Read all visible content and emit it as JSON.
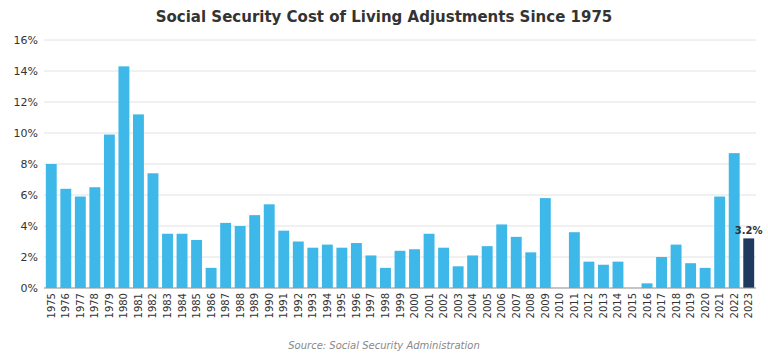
{
  "chart_data": {
    "type": "bar",
    "title": "Social Security Cost of Living Adjustments Since 1975",
    "source": "Source: Social Security Administration",
    "categories": [
      "1975",
      "1976",
      "1977",
      "1978",
      "1979",
      "1980",
      "1981",
      "1982",
      "1983",
      "1984",
      "1985",
      "1986",
      "1987",
      "1988",
      "1989",
      "1990",
      "1991",
      "1992",
      "1993",
      "1994",
      "1995",
      "1996",
      "1997",
      "1998",
      "1999",
      "2000",
      "2001",
      "2002",
      "2003",
      "2004",
      "2005",
      "2006",
      "2007",
      "2008",
      "2009",
      "2010",
      "2011",
      "2012",
      "2013",
      "2014",
      "2015",
      "2016",
      "2017",
      "2018",
      "2019",
      "2020",
      "2021",
      "2022",
      "2023"
    ],
    "values": [
      8.0,
      6.4,
      5.9,
      6.5,
      9.9,
      14.3,
      11.2,
      7.4,
      3.5,
      3.5,
      3.1,
      1.3,
      4.2,
      4.0,
      4.7,
      5.4,
      3.7,
      3.0,
      2.6,
      2.8,
      2.6,
      2.9,
      2.1,
      1.3,
      2.4,
      2.5,
      3.5,
      2.6,
      1.4,
      2.1,
      2.7,
      4.1,
      3.3,
      2.3,
      5.8,
      0.0,
      3.6,
      1.7,
      1.5,
      1.7,
      0.0,
      0.3,
      2.0,
      2.8,
      1.6,
      1.3,
      5.9,
      8.7,
      3.2
    ],
    "colors": [
      "#3db8e8",
      "#3db8e8",
      "#3db8e8",
      "#3db8e8",
      "#3db8e8",
      "#3db8e8",
      "#3db8e8",
      "#3db8e8",
      "#3db8e8",
      "#3db8e8",
      "#3db8e8",
      "#3db8e8",
      "#3db8e8",
      "#3db8e8",
      "#3db8e8",
      "#3db8e8",
      "#3db8e8",
      "#3db8e8",
      "#3db8e8",
      "#3db8e8",
      "#3db8e8",
      "#3db8e8",
      "#3db8e8",
      "#3db8e8",
      "#3db8e8",
      "#3db8e8",
      "#3db8e8",
      "#3db8e8",
      "#3db8e8",
      "#3db8e8",
      "#3db8e8",
      "#3db8e8",
      "#3db8e8",
      "#3db8e8",
      "#3db8e8",
      "#3db8e8",
      "#3db8e8",
      "#3db8e8",
      "#3db8e8",
      "#3db8e8",
      "#3db8e8",
      "#3db8e8",
      "#3db8e8",
      "#3db8e8",
      "#3db8e8",
      "#3db8e8",
      "#3db8e8",
      "#3db8e8",
      "#1e3a5f"
    ],
    "annotations": [
      {
        "text": "3.2%",
        "x": "2023",
        "y": 3.2
      }
    ],
    "ylim": [
      0,
      16
    ],
    "yticks": [
      {
        "value": 0,
        "label": "0%"
      },
      {
        "value": 2,
        "label": "2%"
      },
      {
        "value": 4,
        "label": "4%"
      },
      {
        "value": 6,
        "label": "6%"
      },
      {
        "value": 8,
        "label": "8%"
      },
      {
        "value": 10,
        "label": "10%"
      },
      {
        "value": 12,
        "label": "12%"
      },
      {
        "value": 14,
        "label": "14%"
      },
      {
        "value": 16,
        "label": "16%"
      }
    ],
    "grid": true
  }
}
